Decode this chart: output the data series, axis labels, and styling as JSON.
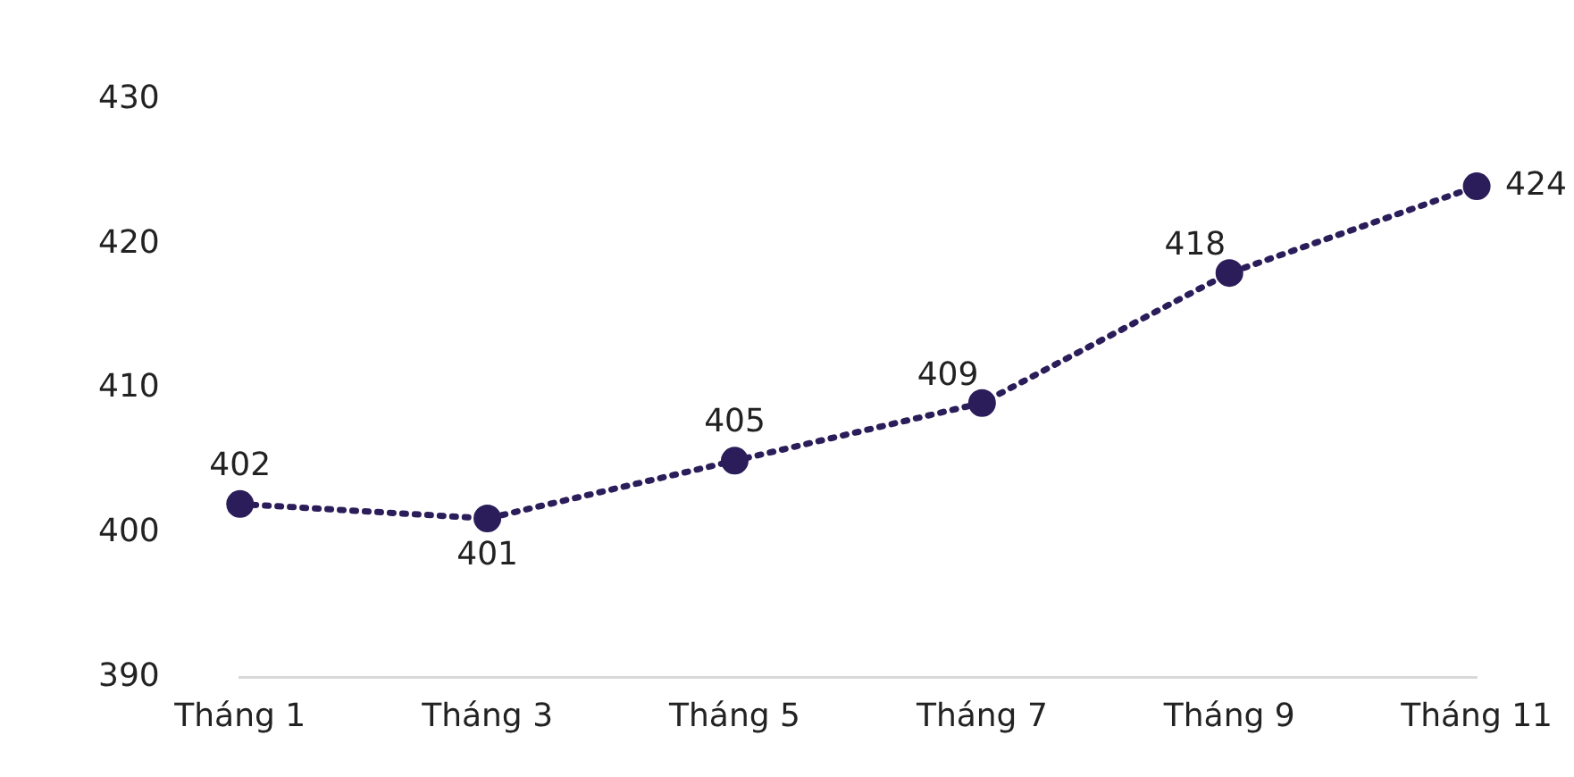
{
  "chart_data": {
    "type": "line",
    "categories": [
      "Tháng 1",
      "Tháng 3",
      "Tháng 5",
      "Tháng 7",
      "Tháng 9",
      "Tháng 11"
    ],
    "series": [
      {
        "color": "#2b1d5a",
        "values": [
          402,
          401,
          405,
          409,
          418,
          424
        ]
      }
    ],
    "ylim": [
      390,
      430
    ],
    "yticks": [
      390,
      400,
      410,
      420,
      430
    ],
    "grid": false,
    "legend": false,
    "marker": "circle",
    "line_style": "dotted",
    "data_labels": true
  }
}
